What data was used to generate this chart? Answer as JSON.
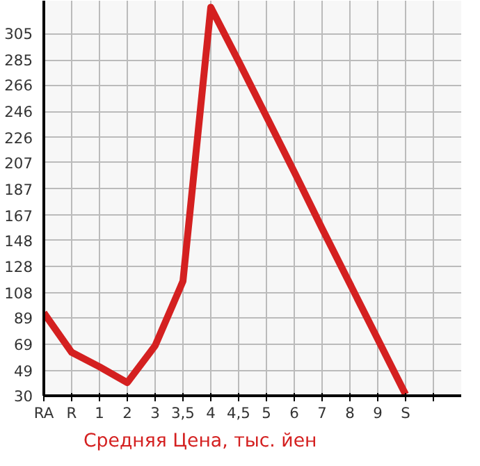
{
  "chart_data": {
    "type": "line",
    "categories": [
      "RA",
      "R",
      "1",
      "2",
      "3",
      "3,5",
      "4",
      "4,5",
      "5",
      "6",
      "7",
      "8",
      "9",
      "S",
      null
    ],
    "series": [
      {
        "name": "Средняя Цена, тыс. йен",
        "color": "#d42020",
        "values": [
          93,
          63,
          52,
          40,
          68,
          117,
          325,
          284,
          242,
          200,
          157,
          115,
          73,
          31,
          null
        ]
      }
    ],
    "ylim": [
      30,
      330
    ],
    "yticks": [
      30,
      49,
      69,
      89,
      108,
      128,
      148,
      167,
      187,
      207,
      226,
      246,
      266,
      285,
      305
    ],
    "grid": true,
    "legend": "bottom left",
    "marker": "none",
    "line_style": "solid"
  }
}
